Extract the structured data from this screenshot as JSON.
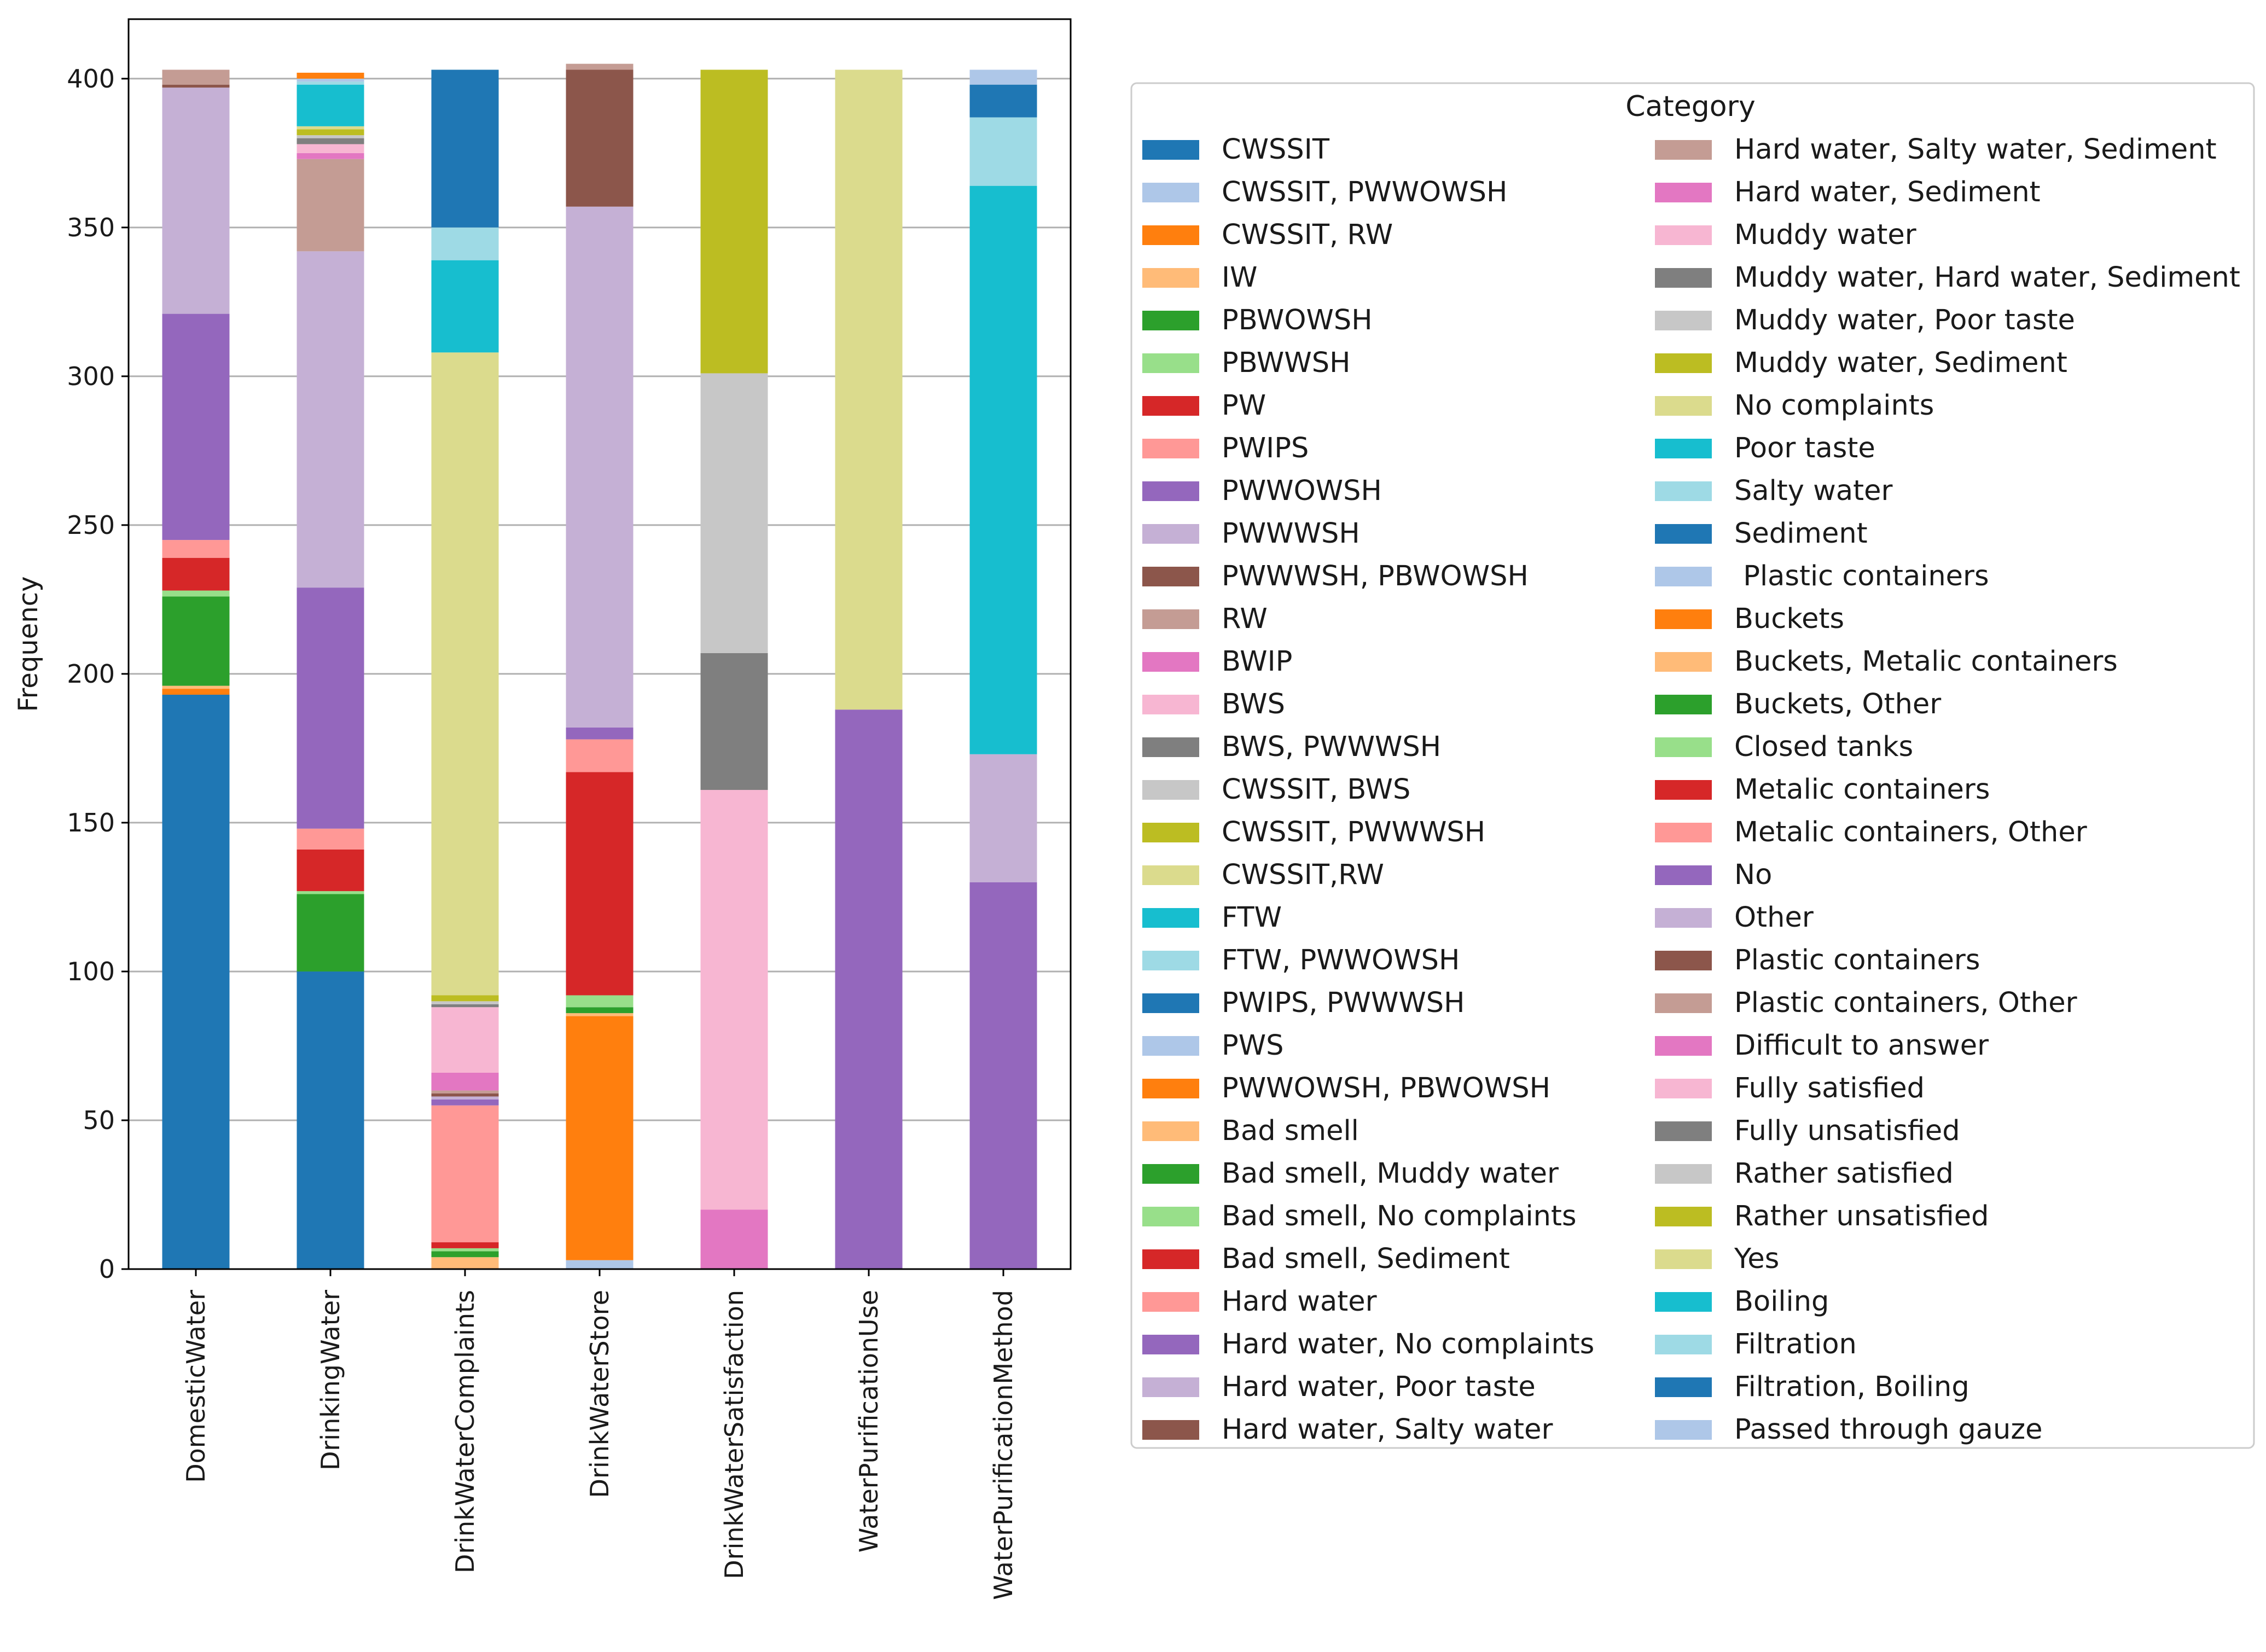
{
  "chart_data": {
    "type": "bar",
    "stacked": true,
    "title": "",
    "xlabel": "",
    "ylabel": "Frequency",
    "ylim": [
      0,
      420
    ],
    "yticks": [
      0,
      50,
      100,
      150,
      200,
      250,
      300,
      350,
      400
    ],
    "grid": "horizontal",
    "categories": [
      "DomesticWater",
      "DrinkingWater",
      "DrinkWaterComplaints",
      "DrinkWaterStore",
      "DrinkWaterSatisfaction",
      "WaterPurificationUse",
      "WaterPurificationMethod"
    ],
    "legend": {
      "title": "Category",
      "placement": "outside-right",
      "items": [
        {
          "label": "CWSSIT",
          "color": "#1f77b4"
        },
        {
          "label": "CWSSIT, PWWOWSH",
          "color": "#aec7e8"
        },
        {
          "label": "CWSSIT, RW",
          "color": "#ff7f0e"
        },
        {
          "label": "IW",
          "color": "#ffbb78"
        },
        {
          "label": "PBWOWSH",
          "color": "#2ca02c"
        },
        {
          "label": "PBWWSH",
          "color": "#98df8a"
        },
        {
          "label": "PW",
          "color": "#d62728"
        },
        {
          "label": "PWIPS",
          "color": "#ff9896"
        },
        {
          "label": "PWWOWSH",
          "color": "#9467bd"
        },
        {
          "label": "PWWWSH",
          "color": "#c5b0d5"
        },
        {
          "label": "PWWWSH, PBWOWSH",
          "color": "#8c564b"
        },
        {
          "label": "RW",
          "color": "#c49c94"
        },
        {
          "label": "BWIP",
          "color": "#e377c2"
        },
        {
          "label": "BWS",
          "color": "#f7b6d2"
        },
        {
          "label": "BWS, PWWWSH",
          "color": "#7f7f7f"
        },
        {
          "label": "CWSSIT, BWS",
          "color": "#c7c7c7"
        },
        {
          "label": "CWSSIT, PWWWSH",
          "color": "#bcbd22"
        },
        {
          "label": "CWSSIT,RW",
          "color": "#dbdb8d"
        },
        {
          "label": "FTW",
          "color": "#17becf"
        },
        {
          "label": "FTW, PWWOWSH",
          "color": "#9edae5"
        },
        {
          "label": "PWIPS, PWWWSH",
          "color": "#1f77b4"
        },
        {
          "label": "PWS",
          "color": "#aec7e8"
        },
        {
          "label": "PWWOWSH, PBWOWSH",
          "color": "#ff7f0e"
        },
        {
          "label": "Bad smell",
          "color": "#ffbb78"
        },
        {
          "label": "Bad smell, Muddy water",
          "color": "#2ca02c"
        },
        {
          "label": "Bad smell, No complaints",
          "color": "#98df8a"
        },
        {
          "label": "Bad smell, Sediment",
          "color": "#d62728"
        },
        {
          "label": "Hard water",
          "color": "#ff9896"
        },
        {
          "label": "Hard water, No complaints",
          "color": "#9467bd"
        },
        {
          "label": "Hard water, Poor taste",
          "color": "#c5b0d5"
        },
        {
          "label": "Hard water, Salty water",
          "color": "#8c564b"
        },
        {
          "label": "Hard water, Salty water, Sediment",
          "color": "#c49c94"
        },
        {
          "label": "Hard water, Sediment",
          "color": "#e377c2"
        },
        {
          "label": "Muddy water",
          "color": "#f7b6d2"
        },
        {
          "label": "Muddy water, Hard water, Sediment",
          "color": "#7f7f7f"
        },
        {
          "label": "Muddy water, Poor taste",
          "color": "#c7c7c7"
        },
        {
          "label": "Muddy water, Sediment",
          "color": "#bcbd22"
        },
        {
          "label": "No complaints",
          "color": "#dbdb8d"
        },
        {
          "label": "Poor taste",
          "color": "#17becf"
        },
        {
          "label": "Salty water",
          "color": "#9edae5"
        },
        {
          "label": "Sediment",
          "color": "#1f77b4"
        },
        {
          "label": " Plastic containers",
          "color": "#aec7e8"
        },
        {
          "label": "Buckets",
          "color": "#ff7f0e"
        },
        {
          "label": "Buckets, Metalic containers",
          "color": "#ffbb78"
        },
        {
          "label": "Buckets, Other",
          "color": "#2ca02c"
        },
        {
          "label": "Closed tanks",
          "color": "#98df8a"
        },
        {
          "label": "Metalic containers",
          "color": "#d62728"
        },
        {
          "label": "Metalic containers, Other",
          "color": "#ff9896"
        },
        {
          "label": "No",
          "color": "#9467bd"
        },
        {
          "label": "Other",
          "color": "#c5b0d5"
        },
        {
          "label": "Plastic containers",
          "color": "#8c564b"
        },
        {
          "label": "Plastic containers, Other",
          "color": "#c49c94"
        },
        {
          "label": "Difficult to answer",
          "color": "#e377c2"
        },
        {
          "label": "Fully satisfied",
          "color": "#f7b6d2"
        },
        {
          "label": "Fully unsatisfied",
          "color": "#7f7f7f"
        },
        {
          "label": "Rather satisfied",
          "color": "#c7c7c7"
        },
        {
          "label": "Rather unsatisfied",
          "color": "#bcbd22"
        },
        {
          "label": "Yes",
          "color": "#dbdb8d"
        },
        {
          "label": "Boiling",
          "color": "#17becf"
        },
        {
          "label": "Filtration",
          "color": "#9edae5"
        },
        {
          "label": "Filtration, Boiling",
          "color": "#1f77b4"
        },
        {
          "label": "Passed through gauze",
          "color": "#aec7e8"
        }
      ]
    },
    "bars": [
      {
        "category": "DomesticWater",
        "segments": [
          {
            "label": "CWSSIT",
            "value": 193
          },
          {
            "label": "CWSSIT, RW",
            "value": 2
          },
          {
            "label": "IW",
            "value": 1
          },
          {
            "label": "PBWOWSH",
            "value": 30
          },
          {
            "label": "PBWWSH",
            "value": 2
          },
          {
            "label": "PW",
            "value": 11
          },
          {
            "label": "PWIPS",
            "value": 6
          },
          {
            "label": "PWWOWSH",
            "value": 76
          },
          {
            "label": "PWWWSH",
            "value": 76
          },
          {
            "label": "PWWWSH, PBWOWSH",
            "value": 1
          },
          {
            "label": "RW",
            "value": 5
          }
        ]
      },
      {
        "category": "DrinkingWater",
        "segments": [
          {
            "label": "CWSSIT",
            "value": 100
          },
          {
            "label": "PBWOWSH",
            "value": 26
          },
          {
            "label": "PBWWSH",
            "value": 1
          },
          {
            "label": "PW",
            "value": 14
          },
          {
            "label": "PWIPS",
            "value": 7
          },
          {
            "label": "PWWOWSH",
            "value": 81
          },
          {
            "label": "PWWWSH",
            "value": 113
          },
          {
            "label": "RW",
            "value": 31
          },
          {
            "label": "BWIP",
            "value": 2
          },
          {
            "label": "BWS",
            "value": 3
          },
          {
            "label": "BWS, PWWWSH",
            "value": 2
          },
          {
            "label": "CWSSIT, BWS",
            "value": 1
          },
          {
            "label": "CWSSIT, PWWWSH",
            "value": 2
          },
          {
            "label": "CWSSIT,RW",
            "value": 1
          },
          {
            "label": "FTW",
            "value": 14
          },
          {
            "label": "FTW, PWWOWSH",
            "value": 1
          },
          {
            "label": "PWS",
            "value": 1
          },
          {
            "label": "PWWOWSH, PBWOWSH",
            "value": 2
          }
        ]
      },
      {
        "category": "DrinkWaterComplaints",
        "segments": [
          {
            "label": "Bad smell",
            "value": 4
          },
          {
            "label": "Bad smell, Muddy water",
            "value": 2
          },
          {
            "label": "Bad smell, No complaints",
            "value": 1
          },
          {
            "label": "Bad smell, Sediment",
            "value": 2
          },
          {
            "label": "Hard water",
            "value": 46
          },
          {
            "label": "Hard water, No complaints",
            "value": 2
          },
          {
            "label": "Hard water, Poor taste",
            "value": 1
          },
          {
            "label": "Hard water, Salty water",
            "value": 1
          },
          {
            "label": "Hard water, Salty water, Sediment",
            "value": 1
          },
          {
            "label": "Hard water, Sediment",
            "value": 6
          },
          {
            "label": "Muddy water",
            "value": 22
          },
          {
            "label": "Muddy water, Hard water, Sediment",
            "value": 1
          },
          {
            "label": "Muddy water, Poor taste",
            "value": 1
          },
          {
            "label": "Muddy water, Sediment",
            "value": 2
          },
          {
            "label": "No complaints",
            "value": 216
          },
          {
            "label": "Poor taste",
            "value": 31
          },
          {
            "label": "Salty water",
            "value": 11
          },
          {
            "label": "Sediment",
            "value": 53
          }
        ]
      },
      {
        "category": "DrinkWaterStore",
        "segments": [
          {
            "label": " Plastic containers",
            "value": 3
          },
          {
            "label": "Buckets",
            "value": 82
          },
          {
            "label": "Buckets, Metalic containers",
            "value": 1
          },
          {
            "label": "Buckets, Other",
            "value": 2
          },
          {
            "label": "Closed tanks",
            "value": 4
          },
          {
            "label": "Metalic containers",
            "value": 75
          },
          {
            "label": "Metalic containers, Other",
            "value": 11
          },
          {
            "label": "No",
            "value": 4
          },
          {
            "label": "Other",
            "value": 175
          },
          {
            "label": "Plastic containers",
            "value": 46
          },
          {
            "label": "Plastic containers, Other",
            "value": 2
          }
        ]
      },
      {
        "category": "DrinkWaterSatisfaction",
        "segments": [
          {
            "label": "Difficult to answer",
            "value": 20
          },
          {
            "label": "Fully satisfied",
            "value": 141
          },
          {
            "label": "Fully unsatisfied",
            "value": 46
          },
          {
            "label": "Rather satisfied",
            "value": 94
          },
          {
            "label": "Rather unsatisfied",
            "value": 102
          }
        ]
      },
      {
        "category": "WaterPurificationUse",
        "segments": [
          {
            "label": "No",
            "value": 188
          },
          {
            "label": "Yes",
            "value": 215
          }
        ]
      },
      {
        "category": "WaterPurificationMethod",
        "segments": [
          {
            "label": "No",
            "value": 130
          },
          {
            "label": "Other",
            "value": 43
          },
          {
            "label": "Boiling",
            "value": 191
          },
          {
            "label": "Filtration",
            "value": 23
          },
          {
            "label": "Filtration, Boiling",
            "value": 11
          },
          {
            "label": "Passed through gauze",
            "value": 5
          }
        ]
      }
    ]
  }
}
